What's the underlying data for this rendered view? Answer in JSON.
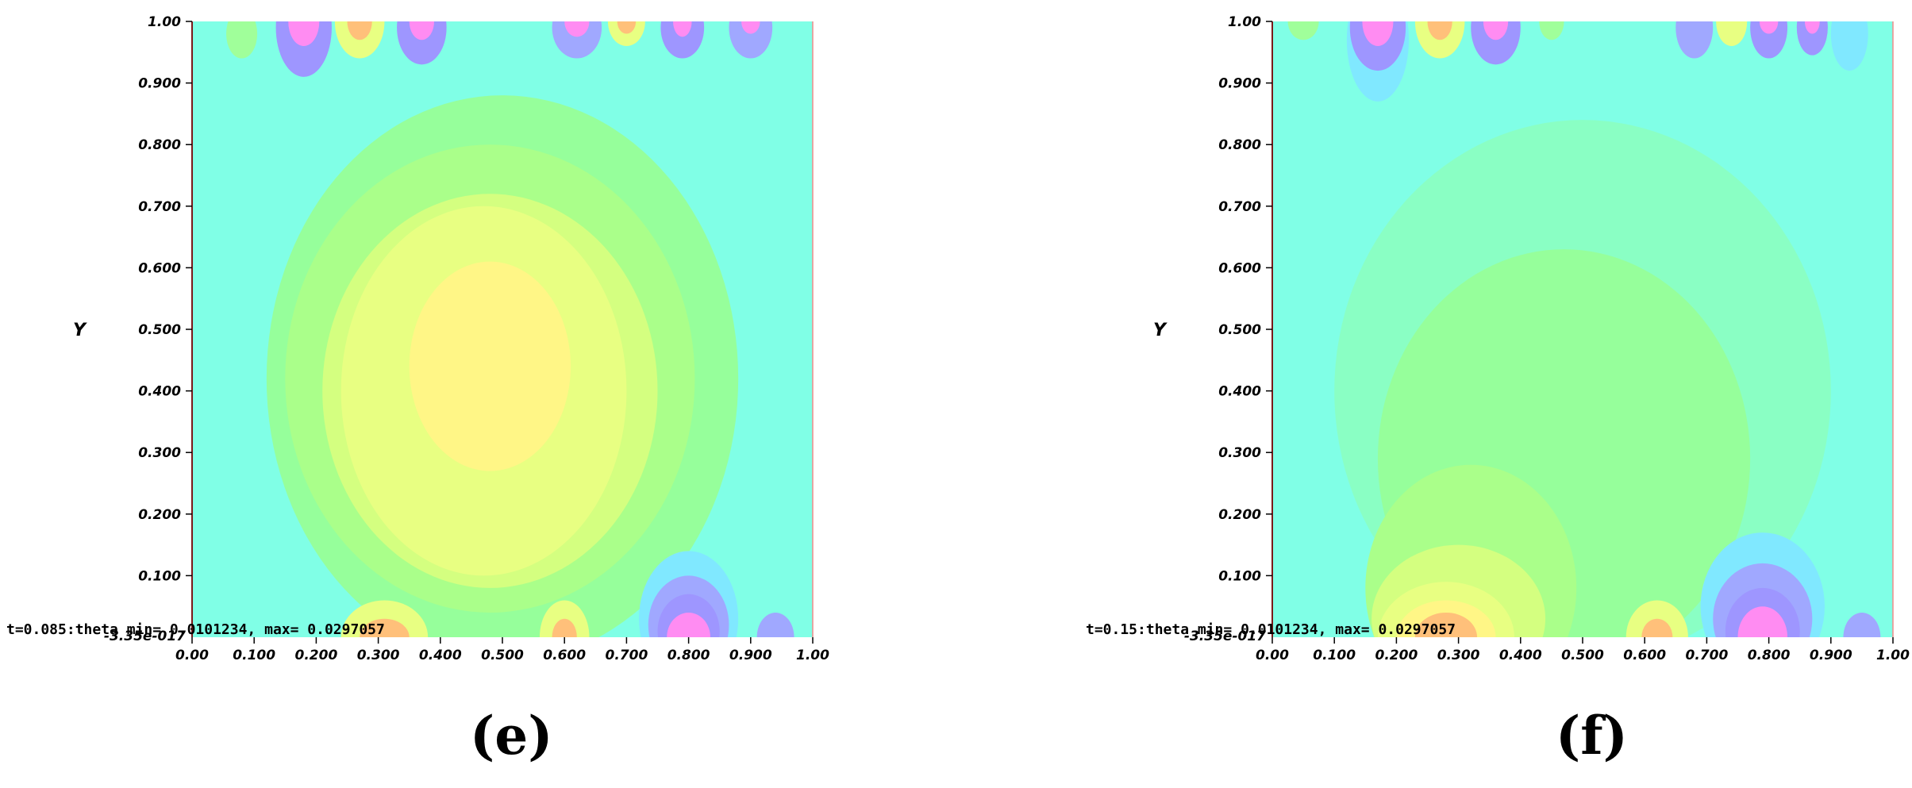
{
  "chart_data": [
    {
      "type": "heatmap",
      "caption": "(e)",
      "ylabel": "Y",
      "xlim": [
        0,
        1
      ],
      "ylim": [
        -3.35e-17,
        1
      ],
      "x_ticks": [
        "0.00",
        "0.100",
        "0.200",
        "0.300",
        "0.400",
        "0.500",
        "0.600",
        "0.700",
        "0.800",
        "0.900",
        "1.00"
      ],
      "y_ticks": [
        "0.100",
        "0.200",
        "0.300",
        "0.400",
        "0.500",
        "0.600",
        "0.700",
        "0.800",
        "0.900",
        "1.00"
      ],
      "y_min_label": "-3.35e-017",
      "annotation": "t=0.085:theta min= 0.0101234, max= 0.0297057",
      "background_color": "#80ffe6",
      "contours": [
        {
          "x": 0.5,
          "y": 0.42,
          "rx": 0.38,
          "ry": 0.46,
          "color": "#96ff9b"
        },
        {
          "x": 0.48,
          "y": 0.42,
          "rx": 0.33,
          "ry": 0.38,
          "color": "#aaff8a"
        },
        {
          "x": 0.48,
          "y": 0.4,
          "rx": 0.27,
          "ry": 0.32,
          "color": "#d4ff80"
        },
        {
          "x": 0.47,
          "y": 0.4,
          "rx": 0.23,
          "ry": 0.3,
          "color": "#e8ff82"
        },
        {
          "x": 0.48,
          "y": 0.44,
          "rx": 0.13,
          "ry": 0.17,
          "color": "#fff686"
        },
        {
          "x": 0.08,
          "y": 0.98,
          "rx": 0.025,
          "ry": 0.04,
          "color": "#a0ff9a"
        },
        {
          "x": 0.18,
          "y": 0.99,
          "rx": 0.045,
          "ry": 0.08,
          "color": "#9e96ff"
        },
        {
          "x": 0.18,
          "y": 1.0,
          "rx": 0.025,
          "ry": 0.04,
          "color": "#ff8cf2"
        },
        {
          "x": 0.27,
          "y": 1.0,
          "rx": 0.04,
          "ry": 0.06,
          "color": "#e8ff82"
        },
        {
          "x": 0.27,
          "y": 1.0,
          "rx": 0.02,
          "ry": 0.03,
          "color": "#ffc07a"
        },
        {
          "x": 0.37,
          "y": 0.99,
          "rx": 0.04,
          "ry": 0.06,
          "color": "#9e96ff"
        },
        {
          "x": 0.37,
          "y": 1.0,
          "rx": 0.02,
          "ry": 0.03,
          "color": "#ff8cf2"
        },
        {
          "x": 0.62,
          "y": 0.99,
          "rx": 0.04,
          "ry": 0.05,
          "color": "#a0a8ff"
        },
        {
          "x": 0.62,
          "y": 1.0,
          "rx": 0.02,
          "ry": 0.025,
          "color": "#ff8cf2"
        },
        {
          "x": 0.7,
          "y": 1.0,
          "rx": 0.03,
          "ry": 0.04,
          "color": "#e8ff82"
        },
        {
          "x": 0.7,
          "y": 1.0,
          "rx": 0.015,
          "ry": 0.02,
          "color": "#ffc07a"
        },
        {
          "x": 0.79,
          "y": 0.99,
          "rx": 0.035,
          "ry": 0.05,
          "color": "#9e96ff"
        },
        {
          "x": 0.79,
          "y": 1.0,
          "rx": 0.015,
          "ry": 0.025,
          "color": "#ff8cf2"
        },
        {
          "x": 0.9,
          "y": 0.99,
          "rx": 0.035,
          "ry": 0.05,
          "color": "#a0a8ff"
        },
        {
          "x": 0.9,
          "y": 1.0,
          "rx": 0.015,
          "ry": 0.02,
          "color": "#ff8cf2"
        },
        {
          "x": 0.31,
          "y": 0.0,
          "rx": 0.07,
          "ry": 0.06,
          "color": "#e8ff82"
        },
        {
          "x": 0.31,
          "y": 0.0,
          "rx": 0.04,
          "ry": 0.03,
          "color": "#ffc07a"
        },
        {
          "x": 0.6,
          "y": 0.0,
          "rx": 0.04,
          "ry": 0.06,
          "color": "#e8ff82"
        },
        {
          "x": 0.6,
          "y": 0.0,
          "rx": 0.02,
          "ry": 0.03,
          "color": "#ffc07a"
        },
        {
          "x": 0.8,
          "y": 0.03,
          "rx": 0.08,
          "ry": 0.11,
          "color": "#80e8ff"
        },
        {
          "x": 0.8,
          "y": 0.02,
          "rx": 0.065,
          "ry": 0.08,
          "color": "#a0a8ff"
        },
        {
          "x": 0.8,
          "y": 0.01,
          "rx": 0.05,
          "ry": 0.06,
          "color": "#9e96ff"
        },
        {
          "x": 0.8,
          "y": 0.0,
          "rx": 0.035,
          "ry": 0.04,
          "color": "#ff8cf2"
        },
        {
          "x": 0.94,
          "y": 0.0,
          "rx": 0.03,
          "ry": 0.04,
          "color": "#a0a8ff"
        }
      ]
    },
    {
      "type": "heatmap",
      "caption": "(f)",
      "ylabel": "Y",
      "xlim": [
        0,
        1
      ],
      "ylim": [
        -3.35e-17,
        1
      ],
      "x_ticks": [
        "0.00",
        "0.100",
        "0.200",
        "0.300",
        "0.400",
        "0.500",
        "0.600",
        "0.700",
        "0.800",
        "0.900",
        "1.00"
      ],
      "y_ticks": [
        "0.100",
        "0.200",
        "0.300",
        "0.400",
        "0.500",
        "0.600",
        "0.700",
        "0.800",
        "0.900",
        "1.00"
      ],
      "y_min_label": "-3.35e-017",
      "annotation": "t=0.15:theta min= 0.0101234, max= 0.0297057",
      "background_color": "#80ffe6",
      "contours": [
        {
          "x": 0.5,
          "y": 0.4,
          "rx": 0.4,
          "ry": 0.44,
          "color": "#8affc4"
        },
        {
          "x": 0.47,
          "y": 0.29,
          "rx": 0.3,
          "ry": 0.34,
          "color": "#96ff9b"
        },
        {
          "x": 0.32,
          "y": 0.08,
          "rx": 0.17,
          "ry": 0.2,
          "color": "#aaff8a"
        },
        {
          "x": 0.3,
          "y": 0.03,
          "rx": 0.14,
          "ry": 0.12,
          "color": "#d4ff80"
        },
        {
          "x": 0.28,
          "y": 0.0,
          "rx": 0.11,
          "ry": 0.09,
          "color": "#e8ff82"
        },
        {
          "x": 0.28,
          "y": 0.0,
          "rx": 0.08,
          "ry": 0.06,
          "color": "#fff686"
        },
        {
          "x": 0.28,
          "y": 0.0,
          "rx": 0.05,
          "ry": 0.04,
          "color": "#ffc07a"
        },
        {
          "x": 0.62,
          "y": 0.0,
          "rx": 0.05,
          "ry": 0.06,
          "color": "#e8ff82"
        },
        {
          "x": 0.62,
          "y": 0.0,
          "rx": 0.025,
          "ry": 0.03,
          "color": "#ffc07a"
        },
        {
          "x": 0.79,
          "y": 0.05,
          "rx": 0.1,
          "ry": 0.12,
          "color": "#80e8ff"
        },
        {
          "x": 0.79,
          "y": 0.03,
          "rx": 0.08,
          "ry": 0.09,
          "color": "#a0a8ff"
        },
        {
          "x": 0.79,
          "y": 0.01,
          "rx": 0.06,
          "ry": 0.07,
          "color": "#9e96ff"
        },
        {
          "x": 0.79,
          "y": 0.0,
          "rx": 0.04,
          "ry": 0.05,
          "color": "#ff8cf2"
        },
        {
          "x": 0.95,
          "y": 0.0,
          "rx": 0.03,
          "ry": 0.04,
          "color": "#a0a8ff"
        },
        {
          "x": 0.17,
          "y": 0.97,
          "rx": 0.05,
          "ry": 0.1,
          "color": "#80e8ff"
        },
        {
          "x": 0.17,
          "y": 0.99,
          "rx": 0.045,
          "ry": 0.07,
          "color": "#9e96ff"
        },
        {
          "x": 0.17,
          "y": 1.0,
          "rx": 0.025,
          "ry": 0.04,
          "color": "#ff8cf2"
        },
        {
          "x": 0.27,
          "y": 1.0,
          "rx": 0.04,
          "ry": 0.06,
          "color": "#e8ff82"
        },
        {
          "x": 0.27,
          "y": 1.0,
          "rx": 0.02,
          "ry": 0.03,
          "color": "#ffc07a"
        },
        {
          "x": 0.36,
          "y": 0.99,
          "rx": 0.04,
          "ry": 0.06,
          "color": "#9e96ff"
        },
        {
          "x": 0.36,
          "y": 1.0,
          "rx": 0.02,
          "ry": 0.03,
          "color": "#ff8cf2"
        },
        {
          "x": 0.05,
          "y": 1.0,
          "rx": 0.025,
          "ry": 0.03,
          "color": "#a0ff9a"
        },
        {
          "x": 0.45,
          "y": 1.0,
          "rx": 0.02,
          "ry": 0.03,
          "color": "#a0ff9a"
        },
        {
          "x": 0.68,
          "y": 0.99,
          "rx": 0.03,
          "ry": 0.05,
          "color": "#a0a8ff"
        },
        {
          "x": 0.74,
          "y": 1.0,
          "rx": 0.025,
          "ry": 0.04,
          "color": "#e8ff82"
        },
        {
          "x": 0.8,
          "y": 0.99,
          "rx": 0.03,
          "ry": 0.05,
          "color": "#9e96ff"
        },
        {
          "x": 0.8,
          "y": 1.0,
          "rx": 0.015,
          "ry": 0.02,
          "color": "#ff8cf2"
        },
        {
          "x": 0.87,
          "y": 0.99,
          "rx": 0.025,
          "ry": 0.045,
          "color": "#9e96ff"
        },
        {
          "x": 0.87,
          "y": 1.0,
          "rx": 0.012,
          "ry": 0.02,
          "color": "#ff8cf2"
        },
        {
          "x": 0.93,
          "y": 0.98,
          "rx": 0.03,
          "ry": 0.06,
          "color": "#80e8ff"
        }
      ]
    }
  ]
}
